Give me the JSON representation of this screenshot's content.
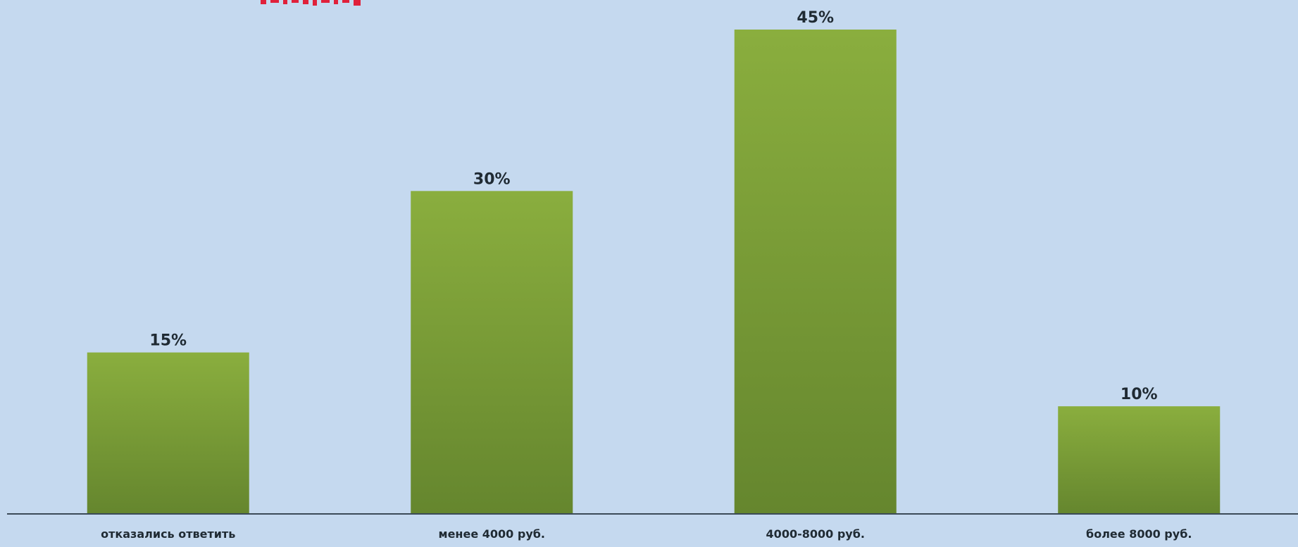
{
  "colors": {
    "background": "#c5d9ef",
    "bar_top": "#8aae3e",
    "bar_bottom": "#65862e",
    "axis": "#3b4a57",
    "title_fragment": "#e0203a"
  },
  "chart_data": {
    "type": "bar",
    "categories": [
      "отказались ответить",
      "менее 4000 руб.",
      "4000-8000 руб.",
      "более 8000 руб."
    ],
    "values": [
      15,
      30,
      45,
      10
    ],
    "value_labels": [
      "15%",
      "30%",
      "45%",
      "10%"
    ],
    "unit": "%",
    "ylim": [
      0,
      45
    ],
    "grid": false,
    "legend": "none"
  }
}
